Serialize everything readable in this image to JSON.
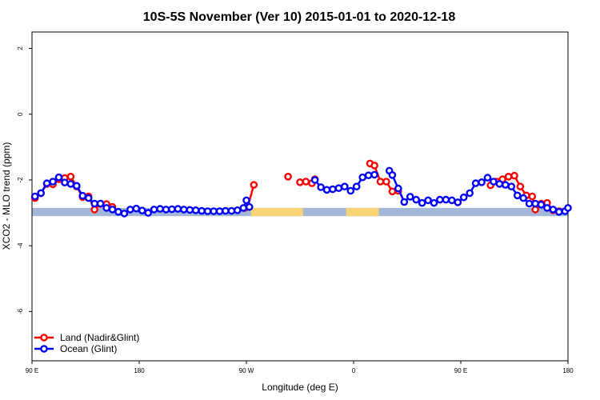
{
  "chart_data": {
    "type": "line",
    "title": "10S-5S November (Ver 10)   2015-01-01 to 2020-12-18",
    "xlabel": "Longitude (deg E)",
    "ylabel": "XCO2 - MLO trend (ppm)",
    "xlim": [
      90,
      450
    ],
    "ylim": [
      -7.5,
      2.5
    ],
    "x_ticks": [
      {
        "value": 90,
        "label": "90 E"
      },
      {
        "value": 162,
        "label": "180"
      },
      {
        "value": 234,
        "label": "90 W"
      },
      {
        "value": 306,
        "label": "0"
      },
      {
        "value": 378,
        "label": "90 E"
      },
      {
        "value": 450,
        "label": "180"
      }
    ],
    "y_ticks": [
      {
        "value": 2,
        "label": "2"
      },
      {
        "value": 0,
        "label": "0"
      },
      {
        "value": -2,
        "label": "-2"
      },
      {
        "value": -4,
        "label": "-4"
      },
      {
        "value": -6,
        "label": "-6"
      }
    ],
    "grid": false,
    "legend_position": "bottom-left",
    "surface_band": {
      "y": [
        -3.1,
        -2.85
      ],
      "ocean_color": "#a3b8d8",
      "land_color": "#f7d574",
      "land_spans": [
        [
          237,
          272
        ],
        [
          301,
          323
        ]
      ]
    },
    "series": [
      {
        "name": "Land (Nadir&Glint)",
        "color": "#ff0000",
        "points": [
          [
            [
              92,
              -2.55
            ],
            [
              96,
              -2.4
            ],
            [
              100,
              -2.12
            ],
            [
              104,
              -2.13
            ],
            [
              108,
              -1.98
            ],
            [
              112,
              -1.94
            ],
            [
              116,
              -1.9
            ],
            [
              120,
              -2.2
            ],
            [
              124,
              -2.52
            ],
            [
              128,
              -2.5
            ],
            [
              132,
              -2.9
            ],
            [
              136,
              -2.73
            ],
            [
              140,
              -2.73
            ],
            [
              144,
              -2.82
            ]
          ],
          [
            [
              233,
              -2.85
            ],
            [
              235,
              -2.8
            ],
            [
              239,
              -2.15
            ]
          ],
          [
            [
              262,
              -1.9
            ]
          ],
          [
            [
              270,
              -2.07
            ],
            [
              274,
              -2.05
            ],
            [
              278,
              -2.1
            ],
            [
              280,
              -1.98
            ]
          ],
          [
            [
              317,
              -1.5
            ],
            [
              320,
              -1.56
            ],
            [
              324,
              -2.05
            ],
            [
              328,
              -2.05
            ],
            [
              332,
              -2.35
            ],
            [
              336,
              -2.33
            ]
          ],
          [
            [
              398,
              -2.16
            ],
            [
              402,
              -2.05
            ],
            [
              406,
              -1.98
            ],
            [
              410,
              -1.9
            ],
            [
              414,
              -1.87
            ],
            [
              418,
              -2.2
            ],
            [
              422,
              -2.47
            ],
            [
              426,
              -2.5
            ],
            [
              428,
              -2.9
            ],
            [
              432,
              -2.72
            ],
            [
              436,
              -2.7
            ],
            [
              440,
              -2.92
            ],
            [
              444,
              -2.95
            ]
          ]
        ]
      },
      {
        "name": "Ocean (Glint)",
        "color": "#0000ff",
        "points": [
          [
            [
              92,
              -2.5
            ],
            [
              96,
              -2.4
            ],
            [
              100,
              -2.1
            ],
            [
              104,
              -2.05
            ],
            [
              108,
              -1.92
            ],
            [
              112,
              -2.08
            ],
            [
              116,
              -2.12
            ],
            [
              120,
              -2.18
            ],
            [
              124,
              -2.48
            ],
            [
              128,
              -2.55
            ],
            [
              132,
              -2.72
            ],
            [
              136,
              -2.72
            ],
            [
              140,
              -2.85
            ],
            [
              144,
              -2.9
            ],
            [
              148,
              -2.97
            ],
            [
              152,
              -3.02
            ],
            [
              156,
              -2.9
            ],
            [
              160,
              -2.87
            ],
            [
              164,
              -2.93
            ],
            [
              168,
              -3.0
            ],
            [
              172,
              -2.9
            ],
            [
              176,
              -2.88
            ],
            [
              180,
              -2.9
            ],
            [
              184,
              -2.89
            ],
            [
              188,
              -2.88
            ],
            [
              192,
              -2.9
            ],
            [
              196,
              -2.91
            ],
            [
              200,
              -2.92
            ],
            [
              204,
              -2.94
            ],
            [
              208,
              -2.95
            ],
            [
              212,
              -2.95
            ],
            [
              216,
              -2.95
            ],
            [
              220,
              -2.94
            ],
            [
              224,
              -2.94
            ],
            [
              228,
              -2.92
            ],
            [
              232,
              -2.85
            ],
            [
              234,
              -2.62
            ],
            [
              236,
              -2.82
            ]
          ],
          [
            [
              280,
              -2.0
            ],
            [
              284,
              -2.22
            ],
            [
              288,
              -2.3
            ],
            [
              292,
              -2.28
            ],
            [
              296,
              -2.25
            ],
            [
              300,
              -2.2
            ],
            [
              304,
              -2.33
            ],
            [
              308,
              -2.2
            ],
            [
              312,
              -1.92
            ],
            [
              316,
              -1.86
            ],
            [
              320,
              -1.84
            ]
          ],
          [
            [
              330,
              -1.72
            ],
            [
              332,
              -1.85
            ],
            [
              336,
              -2.26
            ],
            [
              340,
              -2.67
            ],
            [
              344,
              -2.51
            ],
            [
              348,
              -2.6
            ],
            [
              352,
              -2.7
            ],
            [
              356,
              -2.62
            ],
            [
              360,
              -2.7
            ],
            [
              364,
              -2.6
            ],
            [
              368,
              -2.6
            ],
            [
              372,
              -2.62
            ],
            [
              376,
              -2.68
            ],
            [
              380,
              -2.53
            ],
            [
              384,
              -2.4
            ],
            [
              388,
              -2.1
            ],
            [
              392,
              -2.07
            ],
            [
              396,
              -1.93
            ],
            [
              400,
              -2.05
            ],
            [
              404,
              -2.12
            ],
            [
              408,
              -2.15
            ],
            [
              412,
              -2.2
            ],
            [
              416,
              -2.47
            ],
            [
              420,
              -2.55
            ],
            [
              424,
              -2.72
            ],
            [
              428,
              -2.72
            ],
            [
              432,
              -2.75
            ],
            [
              436,
              -2.85
            ],
            [
              440,
              -2.9
            ],
            [
              444,
              -2.97
            ],
            [
              448,
              -2.95
            ],
            [
              450,
              -2.85
            ]
          ]
        ]
      }
    ]
  }
}
